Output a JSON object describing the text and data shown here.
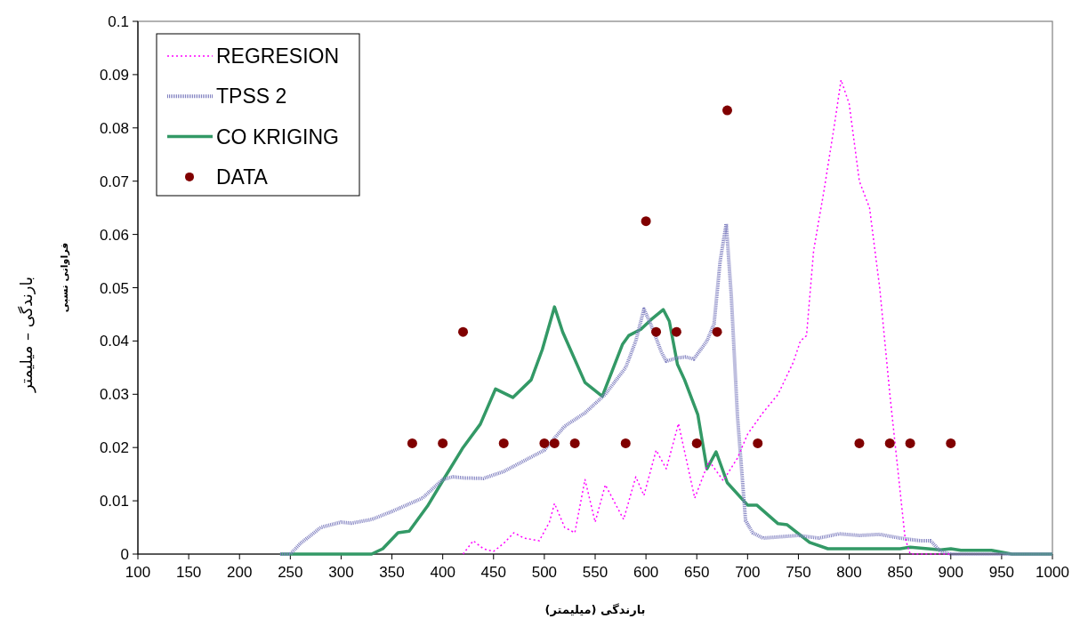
{
  "chart_data": {
    "type": "line",
    "xlabel": "بارندگی (میلیمتر)",
    "ylabel": "بارندگی – میلیمتر",
    "annotations": [
      "فراوانی نسبی"
    ],
    "xlim": [
      100,
      1000
    ],
    "xticks": [
      100,
      150,
      200,
      250,
      300,
      350,
      400,
      450,
      500,
      550,
      600,
      650,
      700,
      750,
      800,
      850,
      900,
      950,
      1000
    ],
    "ylim": [
      0,
      0.1
    ],
    "yticks": [
      0,
      0.01,
      0.02,
      0.03,
      0.04,
      0.05,
      0.06,
      0.07,
      0.08,
      0.09,
      0.1
    ],
    "legend": "top left",
    "grid": false,
    "series": [
      {
        "name": "REGRESION",
        "color": "#ff00ff",
        "line_style": "dotted",
        "marker": "none",
        "x": [
          420,
          430,
          440,
          450,
          460,
          470,
          480,
          495,
          505,
          510,
          520,
          530,
          540,
          550,
          560,
          578,
          590,
          598,
          610,
          620,
          632,
          648,
          662,
          676,
          690,
          700,
          715,
          730,
          745,
          752,
          758,
          765,
          775,
          785,
          792,
          800,
          810,
          820,
          830,
          840,
          850,
          855,
          860,
          900
        ],
        "values": [
          0,
          0.0025,
          0.001,
          0.0005,
          0.002,
          0.004,
          0.003,
          0.0025,
          0.006,
          0.0095,
          0.005,
          0.004,
          0.014,
          0.006,
          0.013,
          0.0065,
          0.0145,
          0.011,
          0.0195,
          0.016,
          0.0245,
          0.0105,
          0.0175,
          0.0138,
          0.018,
          0.0225,
          0.0265,
          0.03,
          0.036,
          0.04,
          0.041,
          0.057,
          0.068,
          0.08,
          0.089,
          0.0845,
          0.07,
          0.065,
          0.05,
          0.03,
          0.012,
          0.003,
          0,
          0
        ]
      },
      {
        "name": "TPSS 2",
        "color": "#8080c0",
        "line_style": "dotted",
        "marker": "none",
        "x": [
          240,
          250,
          260,
          280,
          300,
          310,
          330,
          350,
          380,
          400,
          410,
          420,
          440,
          460,
          480,
          500,
          520,
          540,
          560,
          580,
          590,
          598,
          605,
          615,
          620,
          630,
          639,
          647,
          660,
          667,
          673,
          679,
          684,
          690,
          698,
          705,
          715,
          750,
          770,
          790,
          810,
          830,
          850,
          870,
          880,
          890,
          900,
          1000
        ],
        "values": [
          0,
          0,
          0.002,
          0.005,
          0.006,
          0.0058,
          0.0065,
          0.008,
          0.0105,
          0.014,
          0.0145,
          0.0143,
          0.0142,
          0.0155,
          0.0175,
          0.0195,
          0.024,
          0.0265,
          0.03,
          0.035,
          0.04,
          0.046,
          0.043,
          0.038,
          0.0362,
          0.0368,
          0.037,
          0.0366,
          0.04,
          0.0432,
          0.055,
          0.062,
          0.0484,
          0.026,
          0.0063,
          0.004,
          0.003,
          0.0035,
          0.003,
          0.0038,
          0.0035,
          0.0037,
          0.003,
          0.0025,
          0.0025,
          0.0005,
          0,
          0
        ]
      },
      {
        "name": "CO KRIGING",
        "color": "#339966",
        "line_style": "solid",
        "marker": "none",
        "x": [
          240,
          330,
          341,
          356,
          367,
          385,
          402,
          420,
          437,
          452,
          469,
          487,
          498,
          510,
          518,
          540,
          557,
          577,
          583,
          595,
          605,
          617,
          623,
          631,
          638,
          651,
          660,
          669,
          680,
          700,
          709,
          730,
          739,
          761,
          779,
          800,
          850,
          860,
          890,
          900,
          910,
          940,
          960,
          1000
        ],
        "values": [
          0,
          0,
          0.001,
          0.004,
          0.0043,
          0.009,
          0.0144,
          0.02,
          0.0244,
          0.031,
          0.0294,
          0.0327,
          0.0384,
          0.0464,
          0.0417,
          0.0322,
          0.0296,
          0.0394,
          0.041,
          0.0422,
          0.044,
          0.0459,
          0.0437,
          0.0356,
          0.0327,
          0.0262,
          0.016,
          0.0192,
          0.0134,
          0.0092,
          0.0092,
          0.0057,
          0.0055,
          0.0022,
          0.001,
          0.001,
          0.001,
          0.0013,
          0.0008,
          0.001,
          0.0007,
          0.0007,
          0,
          0
        ]
      },
      {
        "name": "DATA",
        "type": "scatter",
        "color": "#800000",
        "marker": "circle",
        "x": [
          370,
          400,
          420,
          460,
          500,
          510,
          530,
          580,
          600,
          610,
          630,
          650,
          670,
          680,
          710,
          810,
          840,
          860,
          900
        ],
        "values": [
          0.0208,
          0.0208,
          0.0417,
          0.0208,
          0.0208,
          0.0208,
          0.0208,
          0.0208,
          0.0625,
          0.0417,
          0.0417,
          0.0208,
          0.0417,
          0.0833,
          0.0208,
          0.0208,
          0.0208,
          0.0208,
          0.0208
        ]
      }
    ]
  }
}
